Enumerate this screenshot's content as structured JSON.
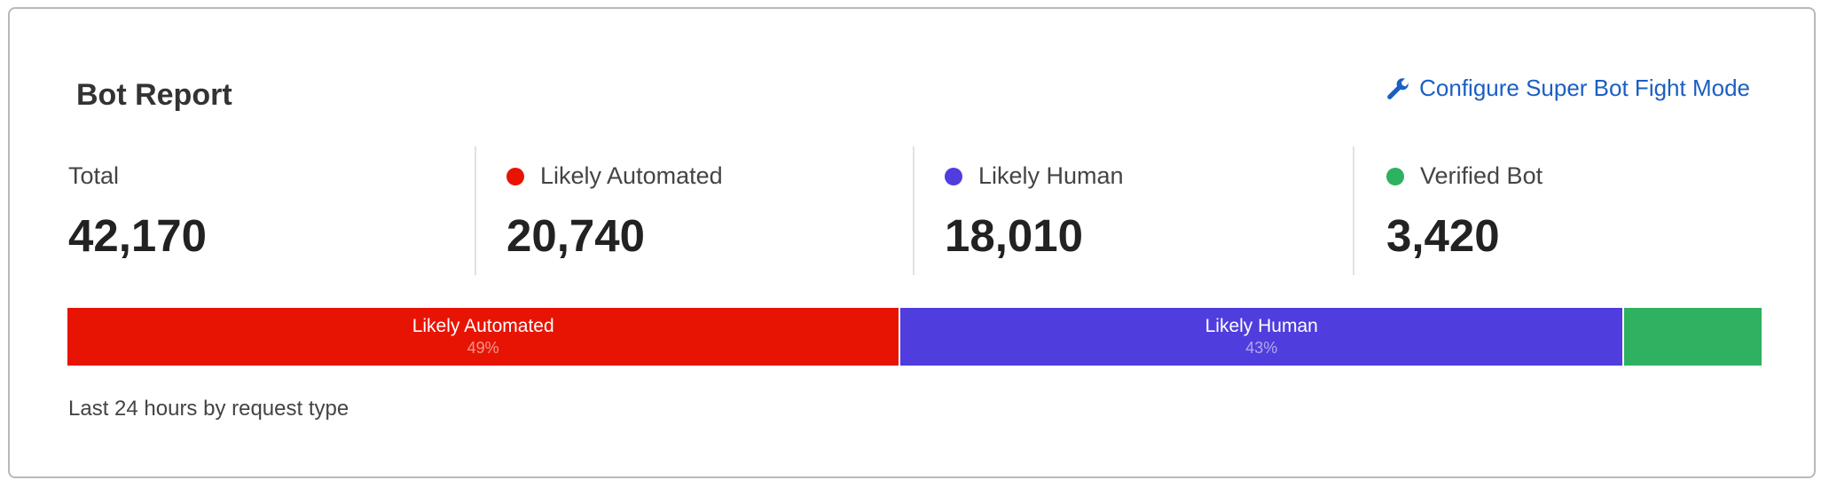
{
  "card": {
    "title": "Bot Report",
    "configure_link": {
      "label": "Configure Super Bot Fight Mode",
      "icon": "wrench-icon",
      "color": "#1b5fc3"
    },
    "stats": [
      {
        "label": "Total",
        "value": "42,170"
      },
      {
        "label": "Likely Automated",
        "value": "20,740",
        "color": "#e81403"
      },
      {
        "label": "Likely Human",
        "value": "18,010",
        "color": "#4f3ddd"
      },
      {
        "label": "Verified Bot",
        "value": "3,420",
        "color": "#2eb160"
      }
    ],
    "bar": [
      {
        "label": "Likely Automated",
        "pct": "49%",
        "value": 20740,
        "color": "#e81403"
      },
      {
        "label": "Likely Human",
        "pct": "43%",
        "value": 18010,
        "color": "#4f3ddd"
      },
      {
        "label": "",
        "pct": "",
        "value": 3420,
        "color": "#2eb160"
      }
    ],
    "footer": "Last 24 hours by request type"
  }
}
